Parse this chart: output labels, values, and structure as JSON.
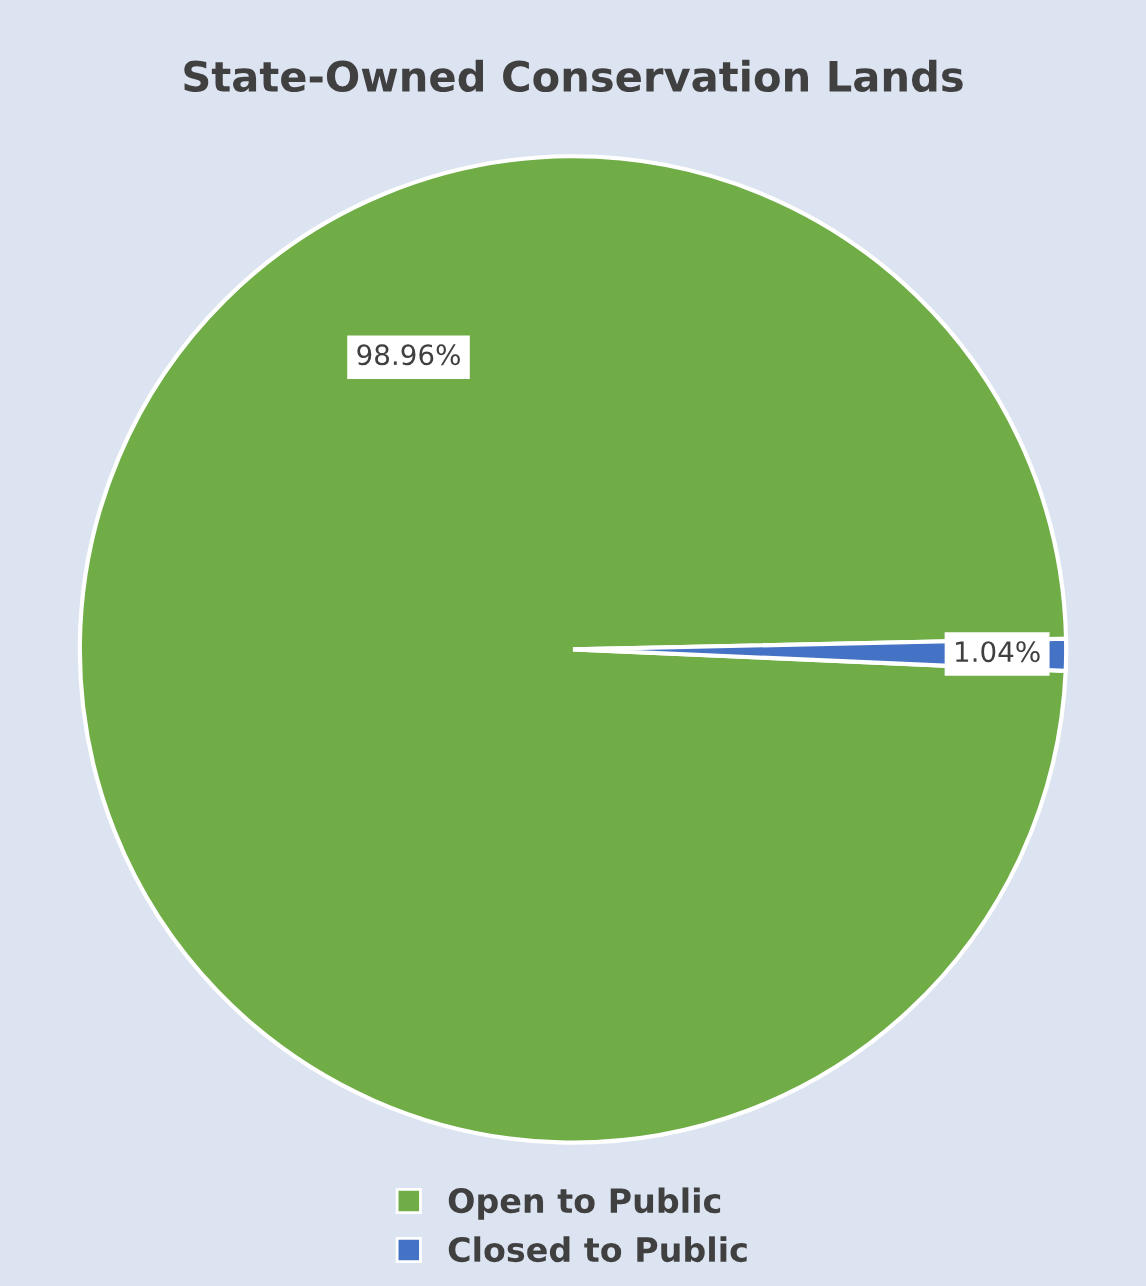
{
  "chart_data": {
    "type": "pie",
    "title": "State-Owned Conservation Lands",
    "categories": [
      "Open to Public",
      "Closed to Public"
    ],
    "values": [
      98.96,
      1.04
    ],
    "colors": [
      "#70ad47",
      "#4472c4"
    ],
    "value_labels": [
      "98.96%",
      "1.04%"
    ],
    "legend": "bottom"
  }
}
